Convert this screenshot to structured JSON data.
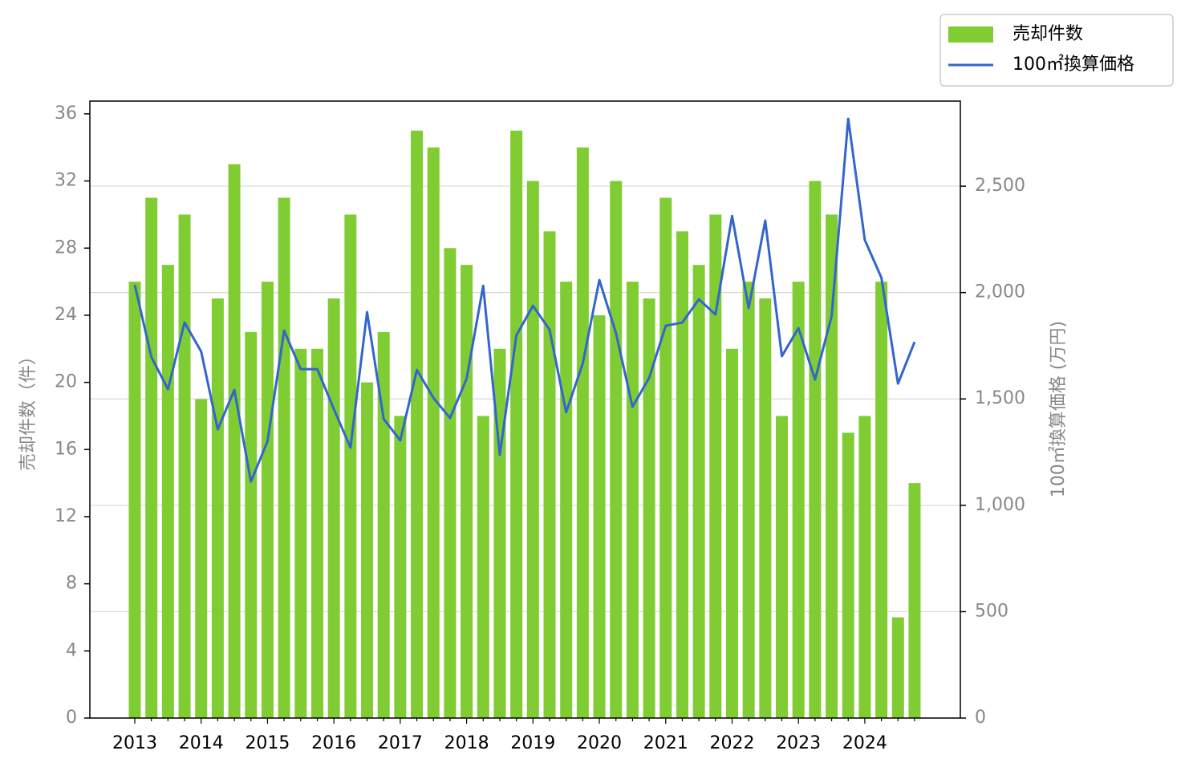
{
  "chart_data": {
    "type": "bar",
    "categories": [
      "2013",
      null,
      null,
      null,
      "2014",
      null,
      null,
      null,
      "2015",
      null,
      null,
      null,
      "2016",
      null,
      null,
      null,
      "2017",
      null,
      null,
      null,
      "2018",
      null,
      null,
      null,
      "2019",
      null,
      null,
      null,
      "2020",
      null,
      null,
      null,
      "2021",
      null,
      null,
      null,
      "2022",
      null,
      null,
      null,
      "2023",
      null,
      null,
      null,
      "2024",
      null,
      null,
      null
    ],
    "series": [
      {
        "name": "売却件数",
        "type": "bar",
        "color": "#80cc33",
        "values": [
          26,
          31,
          27,
          30,
          19,
          25,
          33,
          23,
          26,
          31,
          22,
          22,
          25,
          30,
          20,
          23,
          18,
          35,
          34,
          28,
          27,
          18,
          22,
          35,
          32,
          29,
          26,
          34,
          24,
          32,
          26,
          25,
          31,
          29,
          27,
          30,
          22,
          26,
          25,
          18,
          26,
          32,
          30,
          17,
          18,
          26,
          6,
          14
        ]
      },
      {
        "name": "100㎡換算価格",
        "type": "line",
        "axis": "y2",
        "color": "#3366cc",
        "values": [
          2036,
          1697,
          1546,
          1859,
          1723,
          1357,
          1542,
          1112,
          1301,
          1821,
          1640,
          1640,
          1452,
          1271,
          1908,
          1406,
          1305,
          1636,
          1505,
          1410,
          1595,
          2032,
          1237,
          1799,
          1938,
          1825,
          1437,
          1667,
          2059,
          1810,
          1463,
          1599,
          1844,
          1859,
          1968,
          1897,
          2360,
          1927,
          2338,
          1701,
          1833,
          1591,
          1889,
          2817,
          2247,
          2070,
          1572,
          1768
        ]
      }
    ],
    "y_label": "売却件数（件）",
    "y2_label": "100㎡換算価格 (万円)",
    "ylim": [
      0,
      36.76
    ],
    "yticks": [
      0,
      4,
      8,
      12,
      16,
      20,
      24,
      28,
      32,
      36
    ],
    "y2lim": [
      0,
      2900
    ],
    "y2ticks": [
      0,
      500,
      {
        "value": 1000,
        "label": "1,000"
      },
      {
        "value": 1500,
        "label": "1,500"
      },
      {
        "value": 2000,
        "label": "2,000"
      },
      {
        "value": 2500,
        "label": "2,500"
      }
    ],
    "grid": true,
    "grid_axis": "y2",
    "legend": "upper right"
  }
}
